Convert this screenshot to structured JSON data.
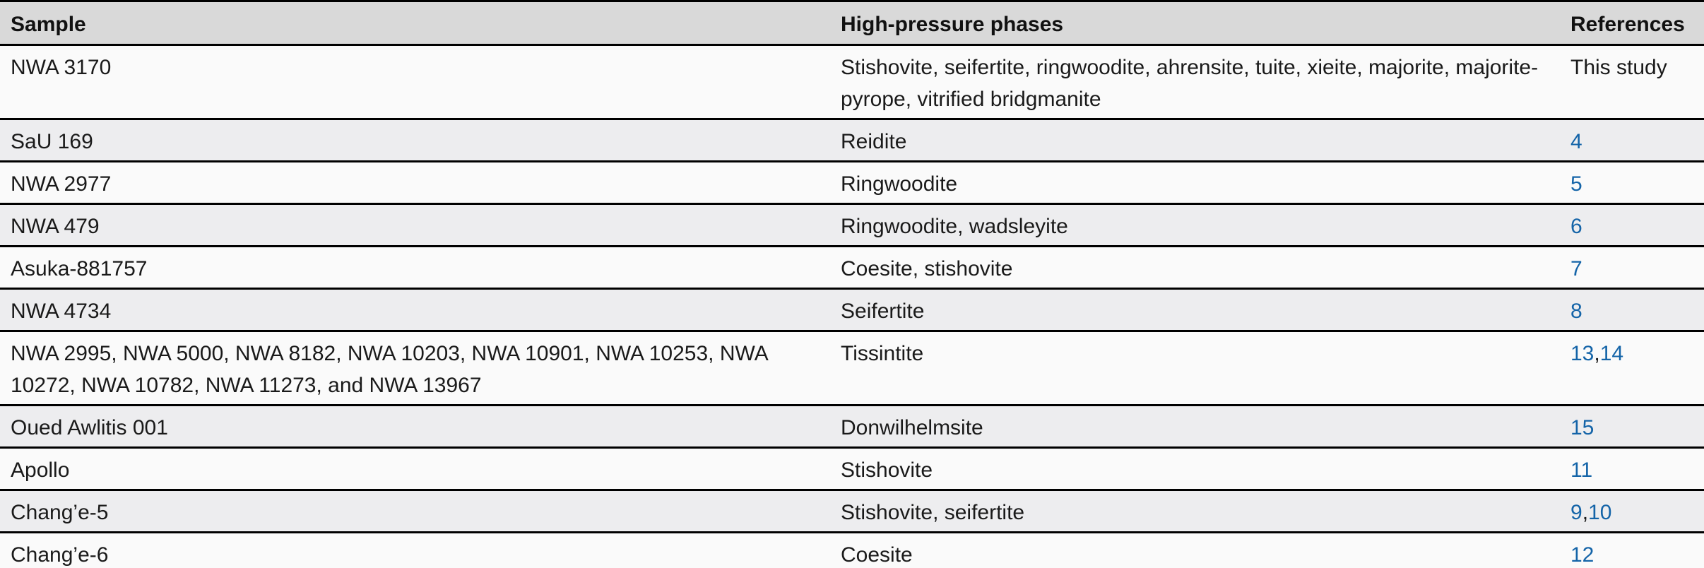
{
  "table": {
    "columns": [
      {
        "label": "Sample"
      },
      {
        "label": "High-pressure phases"
      },
      {
        "label": "References"
      }
    ],
    "link_color": "#1464a8",
    "header_background": "#d9d9d9",
    "stripe_colors": [
      "#fafafa",
      "#ededef"
    ],
    "rows": [
      {
        "sample": "NWA 3170",
        "phases": "Stishovite, seifertite, ringwoodite, ahrensite, tuite, xieite, majorite, majorite-pyrope, vitrified bridgmanite",
        "refs": [
          "This study"
        ],
        "refs_are_links": false
      },
      {
        "sample": "SaU 169",
        "phases": "Reidite",
        "refs": [
          "4"
        ],
        "refs_are_links": true
      },
      {
        "sample": "NWA 2977",
        "phases": "Ringwoodite",
        "refs": [
          "5"
        ],
        "refs_are_links": true
      },
      {
        "sample": "NWA 479",
        "phases": "Ringwoodite, wadsleyite",
        "refs": [
          "6"
        ],
        "refs_are_links": true
      },
      {
        "sample": "Asuka-881757",
        "phases": "Coesite, stishovite",
        "refs": [
          "7"
        ],
        "refs_are_links": true
      },
      {
        "sample": "NWA 4734",
        "phases": "Seifertite",
        "refs": [
          "8"
        ],
        "refs_are_links": true
      },
      {
        "sample": "NWA 2995, NWA 5000, NWA 8182, NWA 10203, NWA 10901, NWA 10253, NWA 10272, NWA 10782, NWA 11273, and NWA 13967",
        "phases": "Tissintite",
        "refs": [
          "13",
          "14"
        ],
        "refs_are_links": true
      },
      {
        "sample": "Oued Awlitis 001",
        "phases": "Donwilhelmsite",
        "refs": [
          "15"
        ],
        "refs_are_links": true
      },
      {
        "sample": "Apollo",
        "phases": "Stishovite",
        "refs": [
          "11"
        ],
        "refs_are_links": true
      },
      {
        "sample": "Chang’e-5",
        "phases": "Stishovite, seifertite",
        "refs": [
          "9",
          "10"
        ],
        "refs_are_links": true
      },
      {
        "sample": "Chang’e-6",
        "phases": "Coesite",
        "refs": [
          "12"
        ],
        "refs_are_links": true
      }
    ]
  }
}
